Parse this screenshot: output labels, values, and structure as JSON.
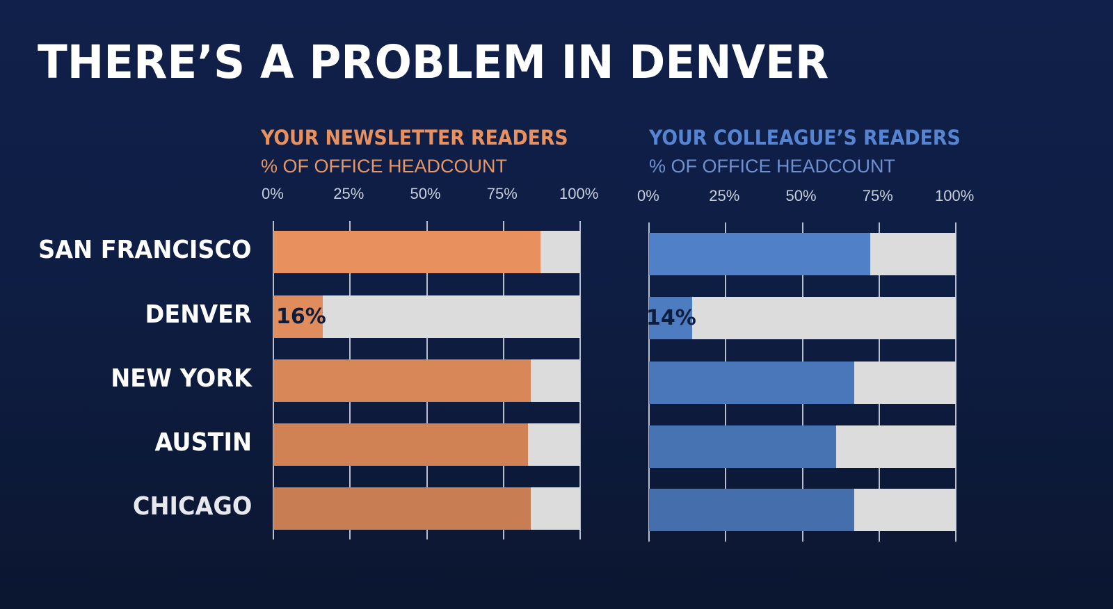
{
  "slide": {
    "title": "THERE’S A PROBLEM IN DENVER"
  },
  "colors": {
    "background": "#0f1d3d",
    "orange": "#e8915f",
    "blue": "#5080c8",
    "track": "#dcdcdc",
    "label_dark": "#0f1d3d",
    "orange_subtitle": "#e79763",
    "blue_subtitle": "#6f8fcf"
  },
  "categories": [
    "SAN FRANCISCO",
    "DENVER",
    "NEW YORK",
    "AUSTIN",
    "CHICAGO"
  ],
  "panels": [
    {
      "title": "YOUR NEWSLETTER READERS",
      "subtitle": "% OF OFFICE HEADCOUNT",
      "ticks": [
        "0%",
        "25%",
        "50%",
        "75%",
        "100%"
      ],
      "values": [
        87,
        16,
        84,
        83,
        84
      ],
      "labels": [
        "87%",
        "16%",
        "84%",
        "83%",
        "84%"
      ]
    },
    {
      "title": "YOUR COLLEAGUE’S READERS",
      "subtitle": "% OF OFFICE HEADCOUNT",
      "ticks": [
        "0%",
        "25%",
        "50%",
        "75%",
        "100%"
      ],
      "values": [
        72,
        14,
        67,
        61,
        67
      ],
      "labels": [
        "72%",
        "14%",
        "67%",
        "61%",
        "67%"
      ]
    }
  ],
  "chart_data": [
    {
      "type": "bar",
      "orientation": "horizontal",
      "title": "YOUR NEWSLETTER READERS",
      "subtitle": "% OF OFFICE HEADCOUNT",
      "categories": [
        "SAN FRANCISCO",
        "DENVER",
        "NEW YORK",
        "AUSTIN",
        "CHICAGO"
      ],
      "values": [
        87,
        16,
        84,
        83,
        84
      ],
      "xlabel": "% OF OFFICE HEADCOUNT",
      "ylabel": "",
      "xlim": [
        0,
        100
      ],
      "xticks": [
        "0%",
        "25%",
        "50%",
        "75%",
        "100%"
      ],
      "grid": true,
      "color": "#e8915f",
      "track_color": "#dcdcdc",
      "data_labels": true
    },
    {
      "type": "bar",
      "orientation": "horizontal",
      "title": "YOUR COLLEAGUE’S READERS",
      "subtitle": "% OF OFFICE HEADCOUNT",
      "categories": [
        "SAN FRANCISCO",
        "DENVER",
        "NEW YORK",
        "AUSTIN",
        "CHICAGO"
      ],
      "values": [
        72,
        14,
        67,
        61,
        67
      ],
      "xlabel": "% OF OFFICE HEADCOUNT",
      "ylabel": "",
      "xlim": [
        0,
        100
      ],
      "xticks": [
        "0%",
        "25%",
        "50%",
        "75%",
        "100%"
      ],
      "grid": true,
      "color": "#5080c8",
      "track_color": "#dcdcdc",
      "data_labels": true
    }
  ]
}
